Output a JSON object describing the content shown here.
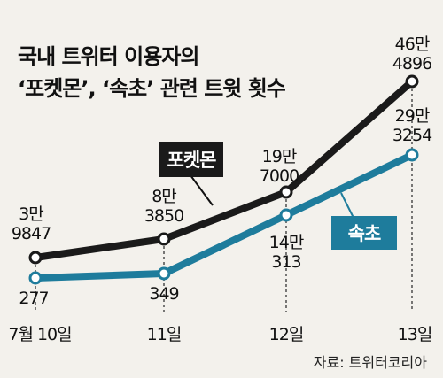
{
  "chart_data": {
    "type": "line",
    "title_lines": [
      "국내 트위터 이용자의",
      "‘포켓몬’, ‘속초’ 관련 트윗 횟수"
    ],
    "categories": [
      "7월 10일",
      "11일",
      "12일",
      "13일"
    ],
    "series": [
      {
        "name": "포켓몬",
        "color": "#1a1a1a",
        "values": [
          39847,
          83850,
          197000,
          464896
        ],
        "labels": [
          [
            "3만",
            "9847"
          ],
          [
            "8만",
            "3850"
          ],
          [
            "19만",
            "7000"
          ],
          [
            "46만",
            "4896"
          ]
        ]
      },
      {
        "name": "속초",
        "color": "#1e7c9c",
        "values": [
          277,
          349,
          140313,
          293254
        ],
        "labels": [
          [
            "277"
          ],
          [
            "349"
          ],
          [
            "14만",
            "313"
          ],
          [
            "29만",
            "3254"
          ]
        ]
      }
    ],
    "source": "자료: 트위터코리아"
  }
}
